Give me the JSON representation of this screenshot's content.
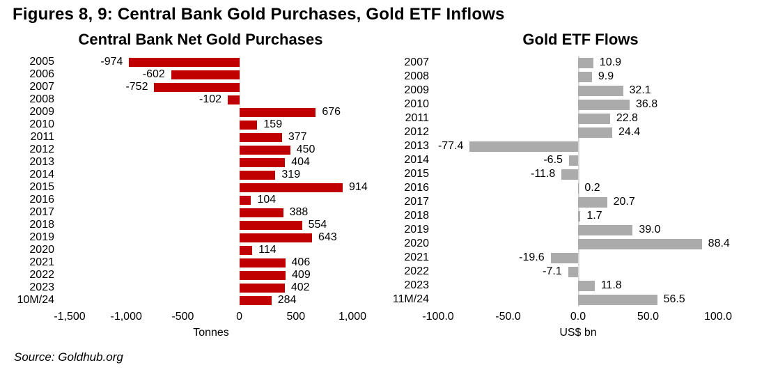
{
  "header": {
    "title": "Figures 8, 9: Central Bank Gold Purchases, Gold ETF Inflows"
  },
  "footer": {
    "source": "Source: Goldhub.org"
  },
  "colors": {
    "central_bank_bar": "#c00000",
    "etf_bar": "#ababab",
    "axis_line": "#d9d9d9",
    "text": "#000000"
  },
  "chart_data": [
    {
      "type": "bar",
      "orientation": "horizontal",
      "title": "Central Bank Net Gold Purchases",
      "xlabel": "Tonnes",
      "xlim": [
        -1500,
        1000
      ],
      "xticks": [
        -1500,
        -1000,
        -500,
        0,
        500,
        1000
      ],
      "xtick_labels": [
        "-1,500",
        "-1,000",
        "-500",
        "0",
        "500",
        "1,000"
      ],
      "bar_color": "#c00000",
      "grid": false,
      "legend": false,
      "categories": [
        "2005",
        "2006",
        "2007",
        "2008",
        "2009",
        "2010",
        "2011",
        "2012",
        "2013",
        "2014",
        "2015",
        "2016",
        "2017",
        "2018",
        "2019",
        "2020",
        "2021",
        "2022",
        "2023",
        "10M/24"
      ],
      "values": [
        -974,
        -602,
        -752,
        -102,
        676,
        159,
        377,
        450,
        404,
        319,
        914,
        104,
        388,
        554,
        643,
        114,
        406,
        409,
        402,
        284
      ],
      "value_labels": [
        "-974",
        "-602",
        "-752",
        "-102",
        "676",
        "159",
        "377",
        "450",
        "404",
        "319",
        "914",
        "104",
        "388",
        "554",
        "643",
        "114",
        "406",
        "409",
        "402",
        "284"
      ]
    },
    {
      "type": "bar",
      "orientation": "horizontal",
      "title": "Gold ETF Flows",
      "xlabel": "US$ bn",
      "xlim": [
        -100,
        100
      ],
      "xticks": [
        -100,
        -50,
        0,
        50,
        100
      ],
      "xtick_labels": [
        "-100.0",
        "-50.0",
        "0.0",
        "50.0",
        "100.0"
      ],
      "bar_color": "#ababab",
      "grid": false,
      "legend": false,
      "categories": [
        "2007",
        "2008",
        "2009",
        "2010",
        "2011",
        "2012",
        "2013",
        "2014",
        "2015",
        "2016",
        "2017",
        "2018",
        "2019",
        "2020",
        "2021",
        "2022",
        "2023",
        "11M/24"
      ],
      "values": [
        10.9,
        9.9,
        32.1,
        36.8,
        22.8,
        24.4,
        -77.4,
        -6.5,
        -11.8,
        0.2,
        20.7,
        1.7,
        39.0,
        88.4,
        -19.6,
        -7.1,
        11.8,
        56.5
      ],
      "value_labels": [
        "10.9",
        "9.9",
        "32.1",
        "36.8",
        "22.8",
        "24.4",
        "-77.4",
        "-6.5",
        "-11.8",
        "0.2",
        "20.7",
        "1.7",
        "39.0",
        "88.4",
        "-19.6",
        "-7.1",
        "11.8",
        "56.5"
      ]
    }
  ]
}
